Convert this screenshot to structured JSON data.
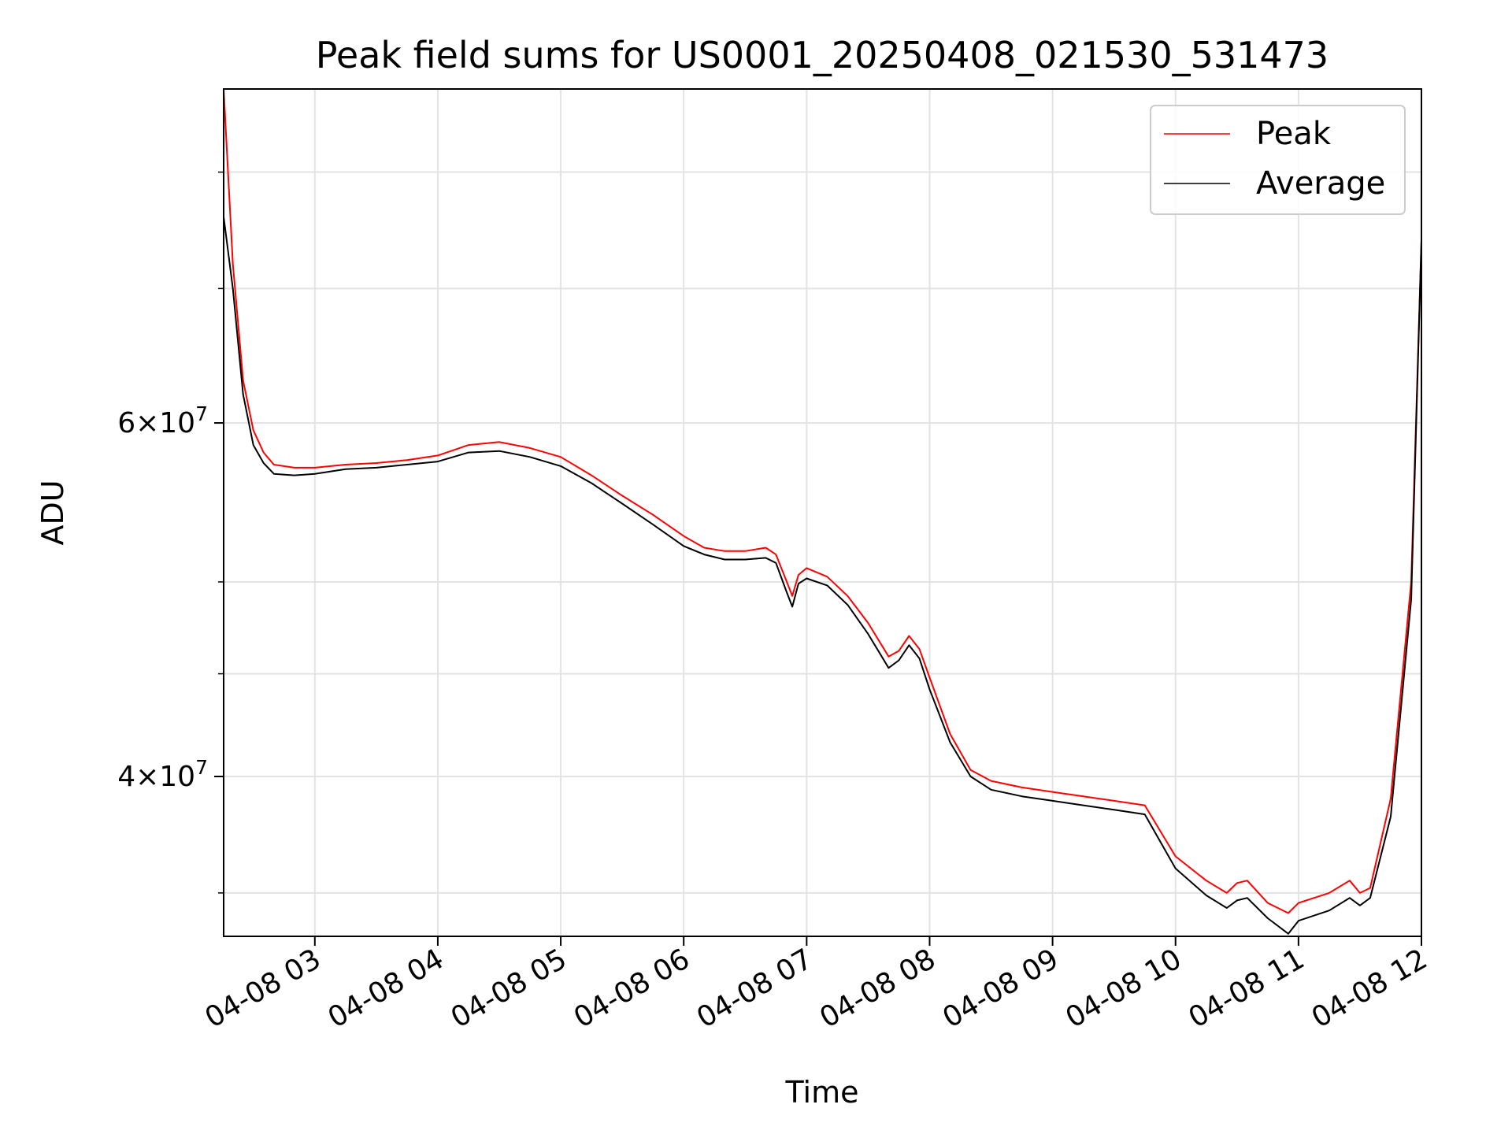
{
  "chart_data": {
    "type": "line",
    "title": "Peak field sums for US0001_20250408_021530_531473",
    "xlabel": "Time",
    "ylabel": "ADU",
    "y_scale": "log",
    "grid": true,
    "legend_position": "top-right",
    "xlim": [
      "2025-04-08 02:15:30",
      "2025-04-08 12:00"
    ],
    "ylim": [
      33300000,
      88000000
    ],
    "x_tick_labels": [
      "04-08 03",
      "04-08 04",
      "04-08 05",
      "04-08 06",
      "04-08 07",
      "04-08 08",
      "04-08 09",
      "04-08 10",
      "04-08 11",
      "04-08 12"
    ],
    "y_tick_labels": [
      {
        "value": 40000000,
        "mantissa": "4",
        "exponent": "7"
      },
      {
        "value": 60000000,
        "mantissa": "6",
        "exponent": "7"
      }
    ],
    "x_times": [
      "02:15",
      "02:20",
      "02:25",
      "02:30",
      "02:35",
      "02:40",
      "02:50",
      "03:00",
      "03:15",
      "03:30",
      "03:45",
      "04:00",
      "04:15",
      "04:30",
      "04:45",
      "05:00",
      "05:15",
      "05:30",
      "05:45",
      "06:00",
      "06:10",
      "06:20",
      "06:30",
      "06:40",
      "06:45",
      "06:50",
      "06:53",
      "06:56",
      "07:00",
      "07:10",
      "07:20",
      "07:30",
      "07:40",
      "07:45",
      "07:50",
      "07:55",
      "08:00",
      "08:10",
      "08:20",
      "08:30",
      "08:45",
      "09:00",
      "09:15",
      "09:30",
      "09:45",
      "10:00",
      "10:15",
      "10:25",
      "10:30",
      "10:35",
      "10:45",
      "10:55",
      "11:00",
      "11:15",
      "11:25",
      "11:30",
      "11:35",
      "11:45",
      "11:55",
      "12:00"
    ],
    "series": [
      {
        "name": "Peak",
        "color": "#ff0000",
        "values": [
          88000000,
          72000000,
          63000000,
          59500000,
          58000000,
          57200000,
          57000000,
          57000000,
          57200000,
          57300000,
          57500000,
          57800000,
          58500000,
          58700000,
          58300000,
          57700000,
          56500000,
          55200000,
          54000000,
          52700000,
          52000000,
          51800000,
          51800000,
          52000000,
          51600000,
          50100000,
          49200000,
          50400000,
          50800000,
          50300000,
          49200000,
          47700000,
          45900000,
          46200000,
          47000000,
          46300000,
          44800000,
          42000000,
          40300000,
          39800000,
          39500000,
          39300000,
          39100000,
          38900000,
          38700000,
          36500000,
          35500000,
          35000000,
          35400000,
          35500000,
          34600000,
          34200000,
          34600000,
          35000000,
          35500000,
          35000000,
          35200000,
          39000000,
          50000000,
          74000000
        ]
      },
      {
        "name": "Average",
        "color": "#000000",
        "values": [
          76000000,
          70000000,
          62000000,
          58500000,
          57300000,
          56600000,
          56500000,
          56600000,
          56900000,
          57000000,
          57200000,
          57400000,
          58000000,
          58100000,
          57700000,
          57100000,
          56000000,
          54700000,
          53400000,
          52100000,
          51600000,
          51300000,
          51300000,
          51400000,
          51100000,
          49500000,
          48600000,
          49900000,
          50200000,
          49800000,
          48700000,
          47100000,
          45300000,
          45700000,
          46500000,
          45800000,
          44200000,
          41600000,
          40000000,
          39400000,
          39100000,
          38900000,
          38700000,
          38500000,
          38300000,
          36000000,
          34900000,
          34400000,
          34700000,
          34800000,
          34000000,
          33400000,
          33900000,
          34300000,
          34800000,
          34500000,
          34800000,
          38200000,
          49000000,
          74000000
        ]
      }
    ]
  }
}
